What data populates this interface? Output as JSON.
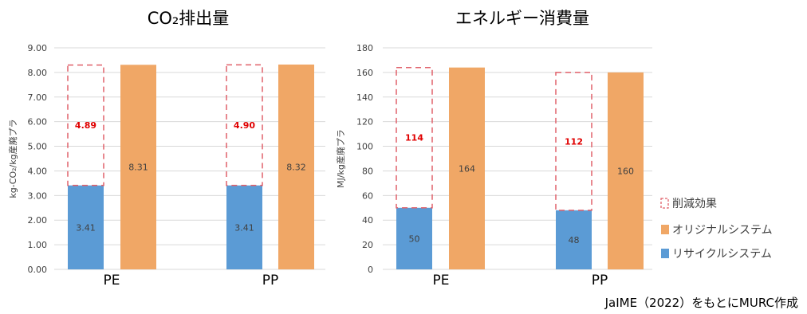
{
  "colors": {
    "recycle": "#5b9bd5",
    "original": "#f0a766",
    "reduction": "#e0606a",
    "reduction_label": "#e00000",
    "grid": "#d9d9d9",
    "axis_text": "#404040",
    "value_text": "#404040",
    "title_text": "#000000"
  },
  "legend": {
    "position": "right",
    "items": [
      {
        "label": "削減効果",
        "kind": "dashed"
      },
      {
        "label": "オリジナルシステム",
        "kind": "original"
      },
      {
        "label": "リサイクルシステム",
        "kind": "recycle"
      }
    ]
  },
  "source_note": "JaIME（2022）をもとにMURC作成",
  "chart_data": [
    {
      "type": "bar",
      "title": "CO₂排出量",
      "ylabel": "kg-CO₂/kg産廃プラ",
      "ylim": [
        0,
        9
      ],
      "yticks": [
        "0.00",
        "1.00",
        "2.00",
        "3.00",
        "4.00",
        "5.00",
        "6.00",
        "7.00",
        "8.00",
        "9.00"
      ],
      "ytick_values": [
        0,
        1,
        2,
        3,
        4,
        5,
        6,
        7,
        8,
        9
      ],
      "grid": true,
      "categories": [
        "PE",
        "PP"
      ],
      "recycle": [
        3.41,
        3.41
      ],
      "reduction": [
        4.89,
        4.9
      ],
      "original": [
        8.31,
        8.32
      ],
      "recycle_labels": [
        "3.41",
        "3.41"
      ],
      "reduction_labels": [
        "4.89",
        "4.90"
      ],
      "original_labels": [
        "8.31",
        "8.32"
      ]
    },
    {
      "type": "bar",
      "title": "エネルギー消費量",
      "ylabel": "MJ/kg産廃プラ",
      "ylim": [
        0,
        180
      ],
      "yticks": [
        "0",
        "20",
        "40",
        "60",
        "80",
        "100",
        "120",
        "140",
        "160",
        "180"
      ],
      "ytick_values": [
        0,
        20,
        40,
        60,
        80,
        100,
        120,
        140,
        160,
        180
      ],
      "grid": true,
      "categories": [
        "PE",
        "PP"
      ],
      "recycle": [
        50,
        48
      ],
      "reduction": [
        114,
        112
      ],
      "original": [
        164,
        160
      ],
      "recycle_labels": [
        "50",
        "48"
      ],
      "reduction_labels": [
        "114",
        "112"
      ],
      "original_labels": [
        "164",
        "160"
      ]
    }
  ]
}
